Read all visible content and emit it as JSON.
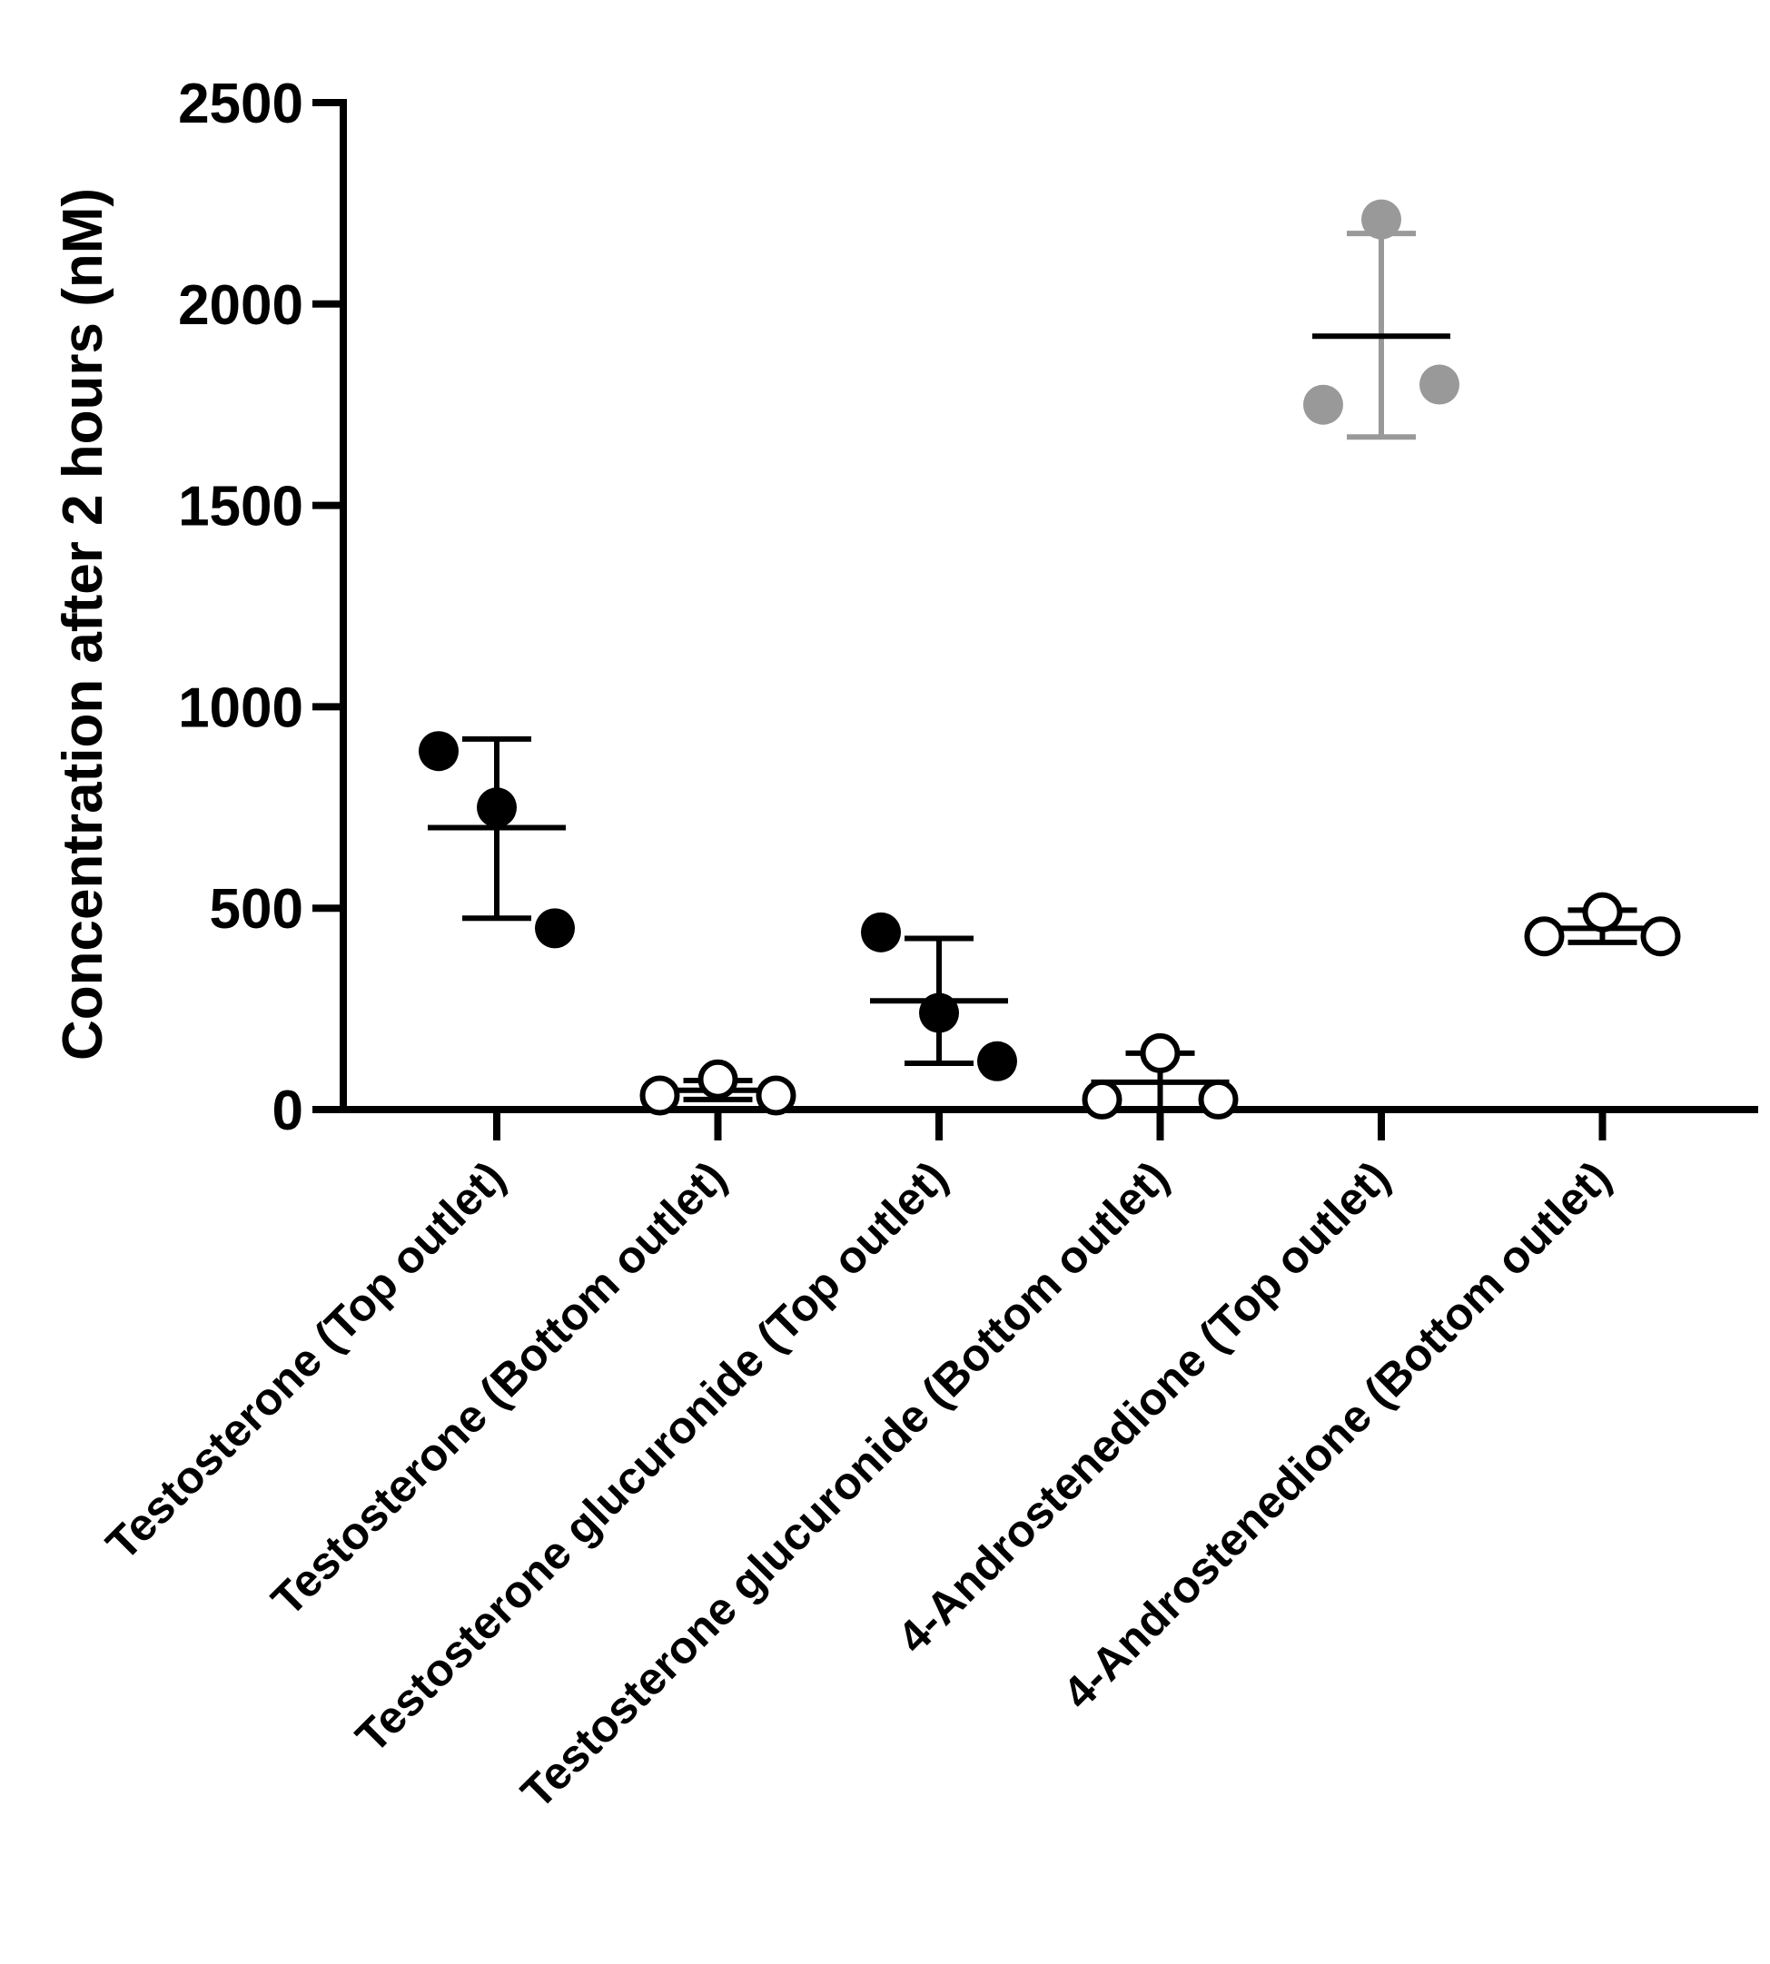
{
  "chart_data": {
    "type": "scatter",
    "title": "",
    "xlabel": "",
    "ylabel": "Concentration after 2 hours (nM)",
    "ylim": [
      0,
      2500
    ],
    "yticks": [
      0,
      500,
      1000,
      1500,
      2000,
      2500
    ],
    "grid": false,
    "legend": "none",
    "categories": [
      "Testosterone (Top outlet)",
      "Testosterone (Bottom outlet)",
      "Testosterone glucuronide (Top outlet)",
      "Testosterone glucuronide (Bottom outlet)",
      "4-Androstenedione (Top outlet)",
      "4-Androstenedione (Bottom outlet)"
    ],
    "groups": [
      {
        "name": "Testosterone (Top outlet)",
        "marker": "filled",
        "color": "#000000",
        "points": [
          890,
          750,
          450
        ],
        "mean": 700,
        "sd_low": 475,
        "sd_high": 920
      },
      {
        "name": "Testosterone (Bottom outlet)",
        "marker": "open",
        "color": "#000000",
        "points": [
          35,
          75,
          35
        ],
        "mean": 48,
        "sd_low": 25,
        "sd_high": 72
      },
      {
        "name": "Testosterone glucuronide (Top outlet)",
        "marker": "filled",
        "color": "#000000",
        "points": [
          440,
          240,
          120
        ],
        "mean": 270,
        "sd_low": 115,
        "sd_high": 425
      },
      {
        "name": "Testosterone glucuronide (Bottom outlet)",
        "marker": "open",
        "color": "#000000",
        "points": [
          25,
          140,
          25
        ],
        "mean": 68,
        "sd_low": 0,
        "sd_high": 140
      },
      {
        "name": "4-Androstenedione (Top outlet)",
        "marker": "filled",
        "color": "#999999",
        "points": [
          1750,
          2210,
          1800
        ],
        "mean": 1920,
        "sd_low": 1670,
        "sd_high": 2175
      },
      {
        "name": "4-Androstenedione (Bottom outlet)",
        "marker": "open",
        "color": "#000000",
        "points": [
          430,
          490,
          430
        ],
        "mean": 450,
        "sd_low": 415,
        "sd_high": 495
      }
    ]
  }
}
